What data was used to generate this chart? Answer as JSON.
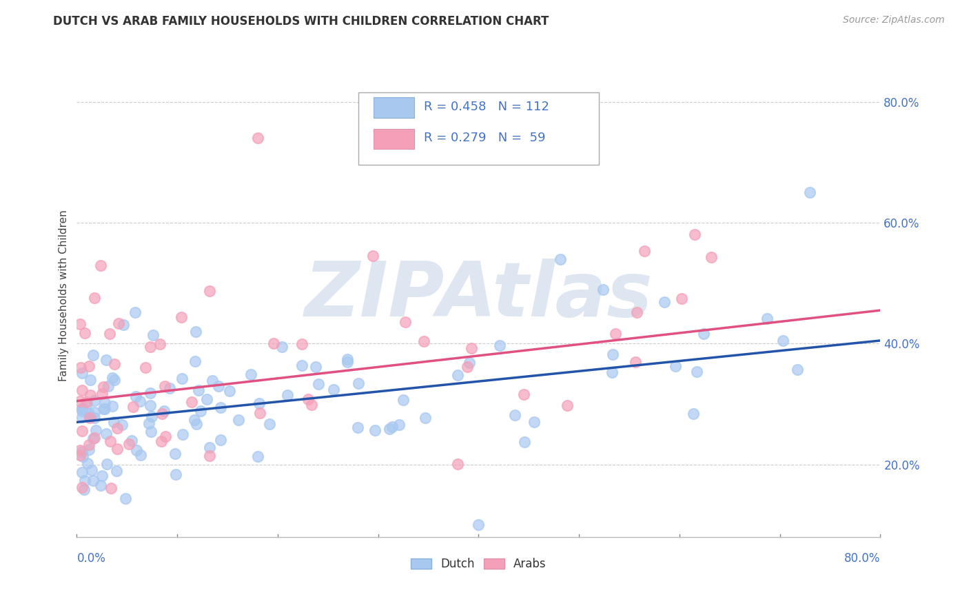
{
  "title": "DUTCH VS ARAB FAMILY HOUSEHOLDS WITH CHILDREN CORRELATION CHART",
  "source": "Source: ZipAtlas.com",
  "ylabel": "Family Households with Children",
  "ytick_values": [
    0.2,
    0.4,
    0.6,
    0.8
  ],
  "ytick_labels": [
    "20.0%",
    "40.0%",
    "60.0%",
    "80.0%"
  ],
  "xlim": [
    0.0,
    0.8
  ],
  "ylim": [
    0.08,
    0.88
  ],
  "dutch_R": 0.458,
  "dutch_N": 112,
  "arab_R": 0.279,
  "arab_N": 59,
  "dutch_color": "#a8c8f0",
  "arab_color": "#f4a0b8",
  "dutch_line_color": "#2255aa",
  "arab_line_color": "#e05080",
  "background_color": "#ffffff",
  "grid_color": "#cccccc",
  "watermark_text": "ZIPAtlas",
  "watermark_color": "#c8d8e8",
  "title_color": "#333333",
  "axis_label_color": "#4472c4",
  "legend_text_color": "#4472c4"
}
